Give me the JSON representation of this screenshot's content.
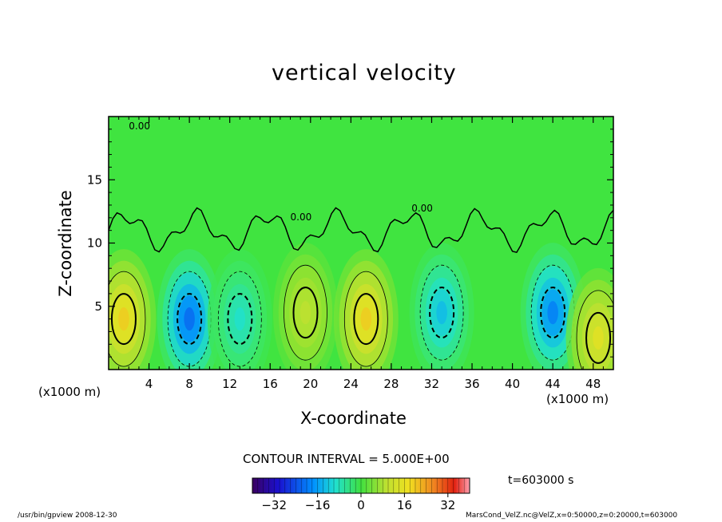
{
  "chart_data": {
    "type": "heatmap",
    "title": "vertical velocity",
    "xlabel": "X-coordinate",
    "ylabel": "Z-coordinate",
    "x_unit_label": "(x1000 m)",
    "xlim": [
      0,
      50
    ],
    "ylim": [
      0,
      20
    ],
    "x_ticks": [
      4,
      8,
      12,
      16,
      20,
      24,
      28,
      32,
      36,
      40,
      44,
      48
    ],
    "y_ticks": [
      5,
      10,
      15
    ],
    "contour_interval_text": "CONTOUR INTERVAL = 5.000E+00",
    "zero_contour_label": "0.00",
    "colorbar": {
      "range": [
        -40,
        40
      ],
      "ticks": [
        -32,
        -16,
        0,
        16,
        32
      ]
    },
    "time_label": "t=603000  s",
    "features": [
      {
        "x": 1.5,
        "z": 4.0,
        "value": 22
      },
      {
        "x": 8.0,
        "z": 4.0,
        "value": -22
      },
      {
        "x": 13.0,
        "z": 4.0,
        "value": -10
      },
      {
        "x": 19.5,
        "z": 4.5,
        "value": 12
      },
      {
        "x": 25.5,
        "z": 4.0,
        "value": 22
      },
      {
        "x": 33.0,
        "z": 4.5,
        "value": -14
      },
      {
        "x": 44.0,
        "z": 4.5,
        "value": -20
      },
      {
        "x": 48.5,
        "z": 2.5,
        "value": 18
      }
    ]
  },
  "footer": {
    "left": "/usr/bin/gpview  2008-12-30",
    "right": "MarsCond_VelZ.nc@VelZ,x=0:50000,z=0:20000,t=603000"
  }
}
